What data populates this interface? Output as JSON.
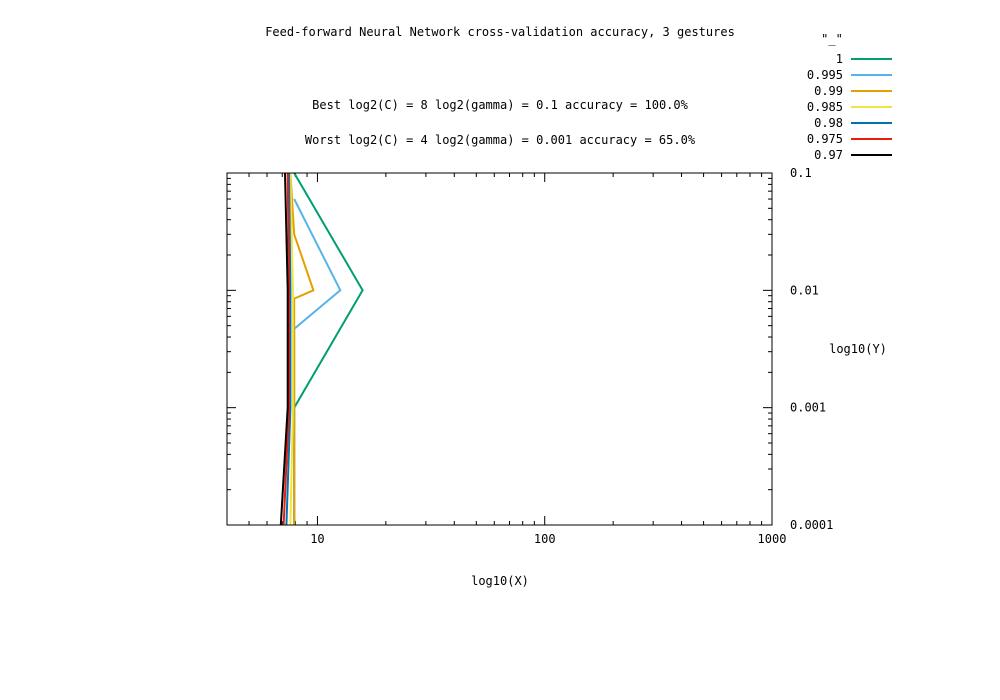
{
  "chart_data": {
    "type": "line",
    "title": "Feed-forward Neural Network cross-validation accuracy, 3 gestures",
    "annotations": [
      "Best log2(C) = 8  log2(gamma) = 0.1  accuracy = 100.0%",
      "Worst log2(C) = 4  log2(gamma) = 0.001   accuracy = 65.0%"
    ],
    "xlabel": "log10(X)",
    "ylabel": "log10(Y)",
    "x_scale": "log",
    "y_scale": "log",
    "xlim": [
      4,
      1000
    ],
    "ylim": [
      0.0001,
      0.1
    ],
    "x_ticks": [
      {
        "value": 10,
        "label": "10"
      },
      {
        "value": 100,
        "label": "100"
      },
      {
        "value": 1000,
        "label": "1000"
      }
    ],
    "y_ticks": [
      {
        "value": 0.1,
        "label": "0.1"
      },
      {
        "value": 0.01,
        "label": "0.01"
      },
      {
        "value": 0.001,
        "label": "0.001"
      },
      {
        "value": 0.0001,
        "label": "0.0001"
      }
    ],
    "legend_title": "\"_\"",
    "legend_position": "top-right",
    "series": [
      {
        "name": "1",
        "color": "#009e73",
        "points": [
          [
            7.9,
            0.1
          ],
          [
            15.8,
            0.01
          ],
          [
            7.9,
            0.001
          ],
          [
            7.9,
            0.0001
          ]
        ]
      },
      {
        "name": "0.995",
        "color": "#56b4e9",
        "points": [
          [
            7.9,
            0.06
          ],
          [
            12.6,
            0.01
          ],
          [
            7.9,
            0.0047
          ],
          [
            7.9,
            0.0001
          ]
        ]
      },
      {
        "name": "0.99",
        "color": "#e69f00",
        "points": [
          [
            7.6,
            0.1
          ],
          [
            7.9,
            0.03
          ],
          [
            9.6,
            0.01
          ],
          [
            7.9,
            0.0085
          ],
          [
            7.9,
            0.0001
          ]
        ]
      },
      {
        "name": "0.985",
        "color": "#f0e442",
        "points": [
          [
            7.6,
            0.1
          ],
          [
            7.8,
            0.01
          ],
          [
            7.8,
            0.001
          ],
          [
            7.6,
            0.0001
          ]
        ]
      },
      {
        "name": "0.98",
        "color": "#0072b2",
        "points": [
          [
            7.5,
            0.1
          ],
          [
            7.6,
            0.01
          ],
          [
            7.6,
            0.001
          ],
          [
            7.3,
            0.0001
          ]
        ]
      },
      {
        "name": "0.975",
        "color": "#e51e10",
        "points": [
          [
            7.4,
            0.1
          ],
          [
            7.5,
            0.01
          ],
          [
            7.5,
            0.001
          ],
          [
            7.1,
            0.0001
          ]
        ]
      },
      {
        "name": "0.97",
        "color": "#000000",
        "points": [
          [
            7.2,
            0.1
          ],
          [
            7.4,
            0.01
          ],
          [
            7.4,
            0.001
          ],
          [
            6.9,
            0.0001
          ]
        ]
      }
    ]
  }
}
